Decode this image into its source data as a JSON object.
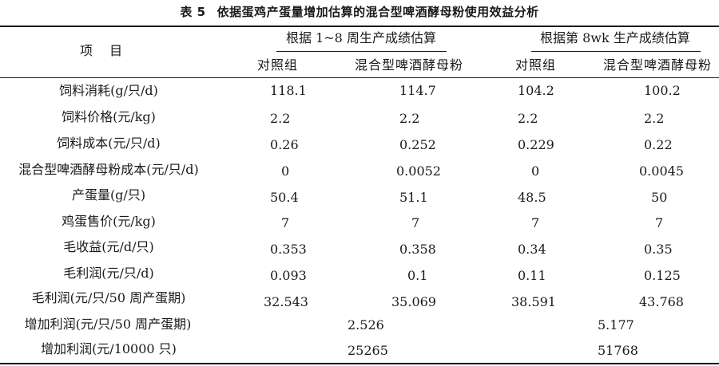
{
  "table": {
    "number": "表 5",
    "title": "依据蛋鸡产蛋量增加估算的混合型啤酒酵母粉使用效益分析",
    "item_header": "项 目",
    "group1": "根据 1~8 周生产成绩估算",
    "group2": "根据第 8wk 生产成绩估算",
    "subheaders": [
      "对照组",
      "混合型啤酒酵母粉",
      "对照组",
      "混合型啤酒酵母粉"
    ],
    "rows": [
      {
        "label": "饲料消耗(g/只/d)",
        "values": [
          "118.1",
          "114.7",
          "104.2",
          "100.2"
        ]
      },
      {
        "label": "饲料价格(元/kg)",
        "values": [
          "2.2",
          "2.2",
          "2.2",
          "2.2"
        ]
      },
      {
        "label": "饲料成本(元/只/d)",
        "values": [
          "0.26",
          "0.252",
          "0.229",
          "0.22"
        ]
      },
      {
        "label": "混合型啤酒酵母粉成本(元/只/d)",
        "values": [
          "0",
          "0.0052",
          "0",
          "0.0045"
        ]
      },
      {
        "label": "产蛋量(g/只)",
        "values": [
          "50.4",
          "51.1",
          "48.5",
          "50"
        ]
      },
      {
        "label": "鸡蛋售价(元/kg)",
        "values": [
          "7",
          "7",
          "7",
          "7"
        ]
      },
      {
        "label": "毛收益(元/d/只)",
        "values": [
          "0.353",
          "0.358",
          "0.34",
          "0.35"
        ]
      },
      {
        "label": "毛利润(元/只/d)",
        "values": [
          "0.093",
          "0.1",
          "0.11",
          "0.125"
        ]
      },
      {
        "label": "毛利润(元/只/50 周产蛋期)",
        "values": [
          "32.543",
          "35.069",
          "38.591",
          "43.768"
        ]
      }
    ],
    "merged_rows": [
      {
        "label": "增加利润(元/只/50 周产蛋期)",
        "values": [
          "2.526",
          "5.177"
        ]
      },
      {
        "label": "增加利润(元/10000 只)",
        "values": [
          "25265",
          "51768"
        ]
      }
    ]
  }
}
